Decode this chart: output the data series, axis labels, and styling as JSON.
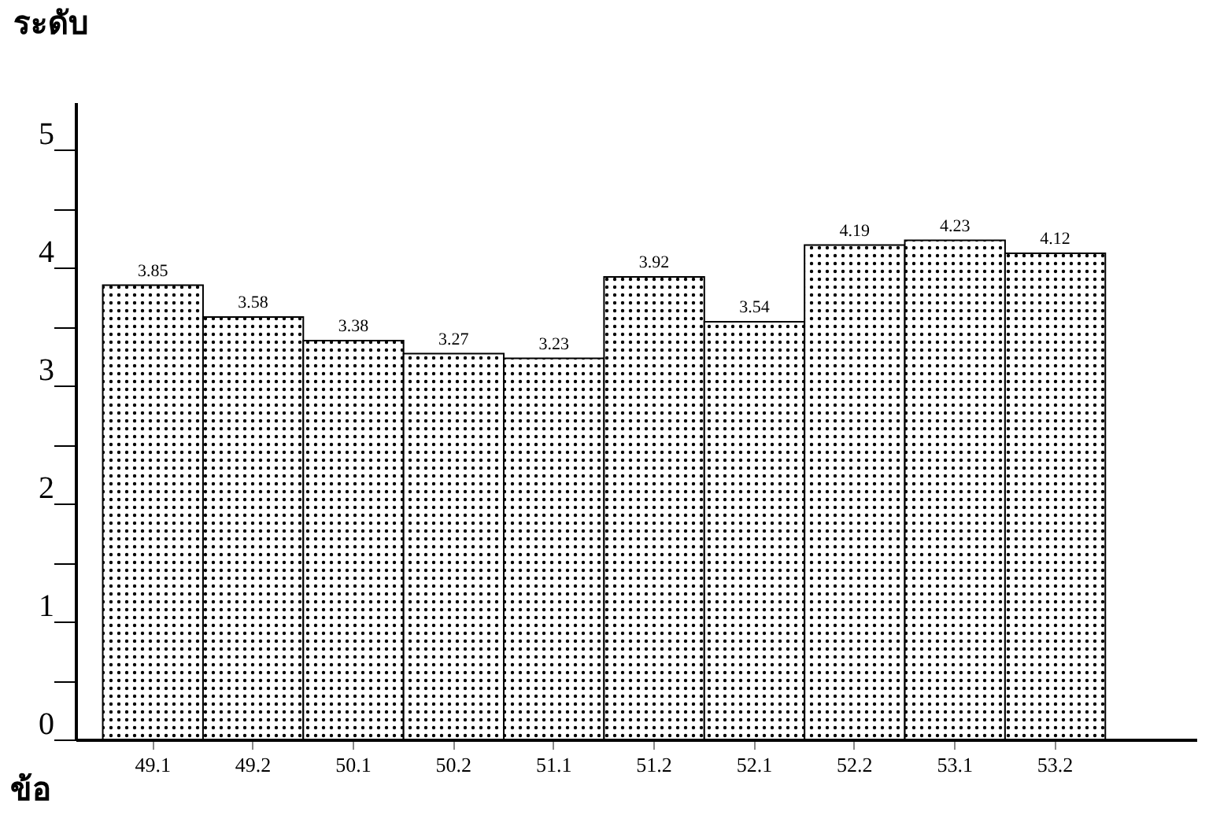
{
  "chart_data": {
    "type": "bar",
    "ylabel": "ระดับ",
    "xlabel": "ข้อ",
    "categories": [
      "49.1",
      "49.2",
      "50.1",
      "50.2",
      "51.1",
      "51.2",
      "52.1",
      "52.2",
      "53.1",
      "53.2"
    ],
    "values": [
      3.85,
      3.58,
      3.38,
      3.27,
      3.23,
      3.92,
      3.54,
      4.19,
      4.23,
      4.12
    ],
    "color": "#000000",
    "ylim": [
      0,
      5.4
    ],
    "yticks": [
      0,
      {
        "value": 0.5,
        "label": null
      },
      1,
      {
        "value": 1.5,
        "label": null
      },
      2,
      {
        "value": 2.5,
        "label": null
      },
      3,
      {
        "value": 3.5,
        "label": null
      },
      4,
      {
        "value": 4.5,
        "label": null
      },
      5
    ],
    "data_labels": true
  }
}
